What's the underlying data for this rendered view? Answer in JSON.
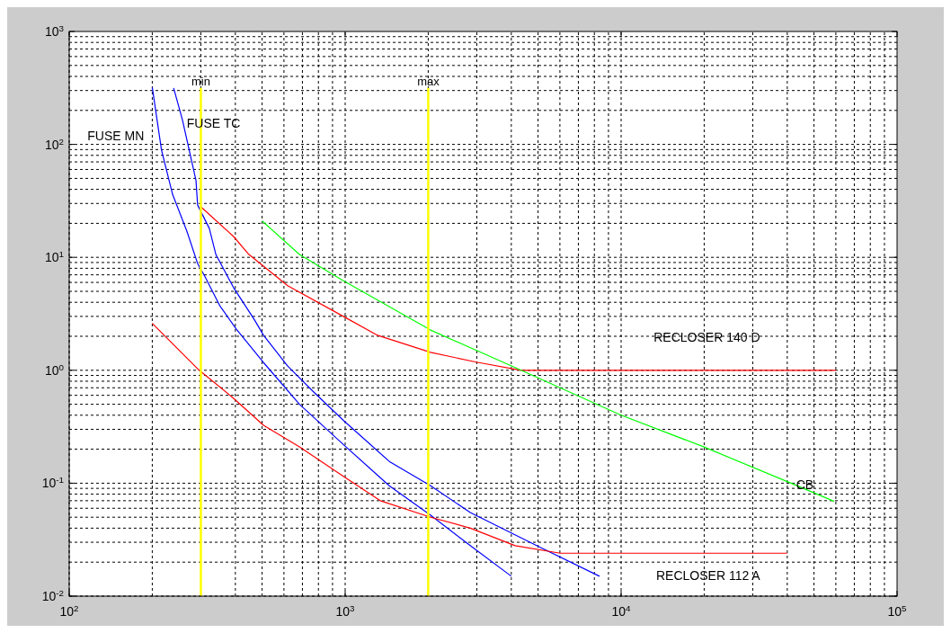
{
  "chart_data": {
    "type": "line",
    "log": "xy",
    "grid": true,
    "xlim": [
      100,
      100000
    ],
    "ylim": [
      0.01,
      1000
    ],
    "xticks": [
      {
        "value": 100,
        "label": "10$^{2}$"
      },
      {
        "value": 1000,
        "label": "10$^{3}$"
      },
      {
        "value": 10000,
        "label": "10$^{4}$"
      },
      {
        "value": 100000,
        "label": "10$^{5}$"
      }
    ],
    "yticks": [
      {
        "value": 0.01,
        "label": "10$^{-2}$"
      },
      {
        "value": 0.1,
        "label": "10$^{-1}$"
      },
      {
        "value": 1,
        "label": "10$^{0}$"
      },
      {
        "value": 10,
        "label": "10$^{1}$"
      },
      {
        "value": 100,
        "label": "10$^{2}$"
      },
      {
        "value": 1000,
        "label": "10$^{3}$"
      }
    ],
    "series": [
      {
        "color": "#0000ff",
        "x": [
          200,
          216,
          237,
          267,
          292,
          310,
          352,
          404,
          506,
          683,
          985,
          1445,
          2040,
          2840,
          4000
        ],
        "values": [
          320,
          89,
          36,
          17,
          8.8,
          6.8,
          3.7,
          2.3,
          1.17,
          0.5,
          0.22,
          0.095,
          0.052,
          0.028,
          0.015
        ]
      },
      {
        "color": "#0000ff",
        "x": [
          239,
          257,
          288,
          292,
          322,
          340,
          394,
          469,
          506,
          619,
          775,
          985,
          1445,
          2040,
          2840,
          4940,
          8350
        ],
        "values": [
          316,
          166,
          48,
          29,
          18,
          10.6,
          5.4,
          2.8,
          2.04,
          1.09,
          0.63,
          0.36,
          0.156,
          0.095,
          0.055,
          0.028,
          0.015
        ]
      },
      {
        "color": "#ff0000",
        "x": [
          300,
          394,
          448,
          619,
          985,
          1310,
          2040,
          2990,
          4340,
          60000
        ],
        "values": [
          28,
          15.3,
          10.6,
          5.6,
          3.0,
          2.04,
          1.44,
          1.18,
          1.0,
          1.0
        ]
      },
      {
        "color": "#ff0000",
        "x": [
          200,
          292,
          394,
          506,
          683,
          985,
          1340,
          2040,
          2840,
          4130,
          6010,
          40000
        ],
        "values": [
          2.6,
          1.03,
          0.565,
          0.326,
          0.21,
          0.115,
          0.07,
          0.05,
          0.04,
          0.028,
          0.024,
          0.024
        ]
      },
      {
        "color": "#00ff00",
        "x": [
          500,
          683,
          985,
          2040,
          4340,
          10000,
          19900,
          41300,
          59200
        ],
        "values": [
          21,
          10.6,
          6.2,
          2.27,
          1.0,
          0.4,
          0.21,
          0.1,
          0.069
        ]
      }
    ],
    "ref_lines": [
      {
        "axis": "x",
        "value": 300,
        "label": "min",
        "color": "#ffff00"
      },
      {
        "axis": "x",
        "value": 2000,
        "label": "max",
        "color": "#ffff00"
      }
    ],
    "annotations": [
      "FUSE MN",
      "FUSE TC",
      "RECLOSER 140 D",
      "CB",
      "RECLOSER 112 A"
    ]
  }
}
